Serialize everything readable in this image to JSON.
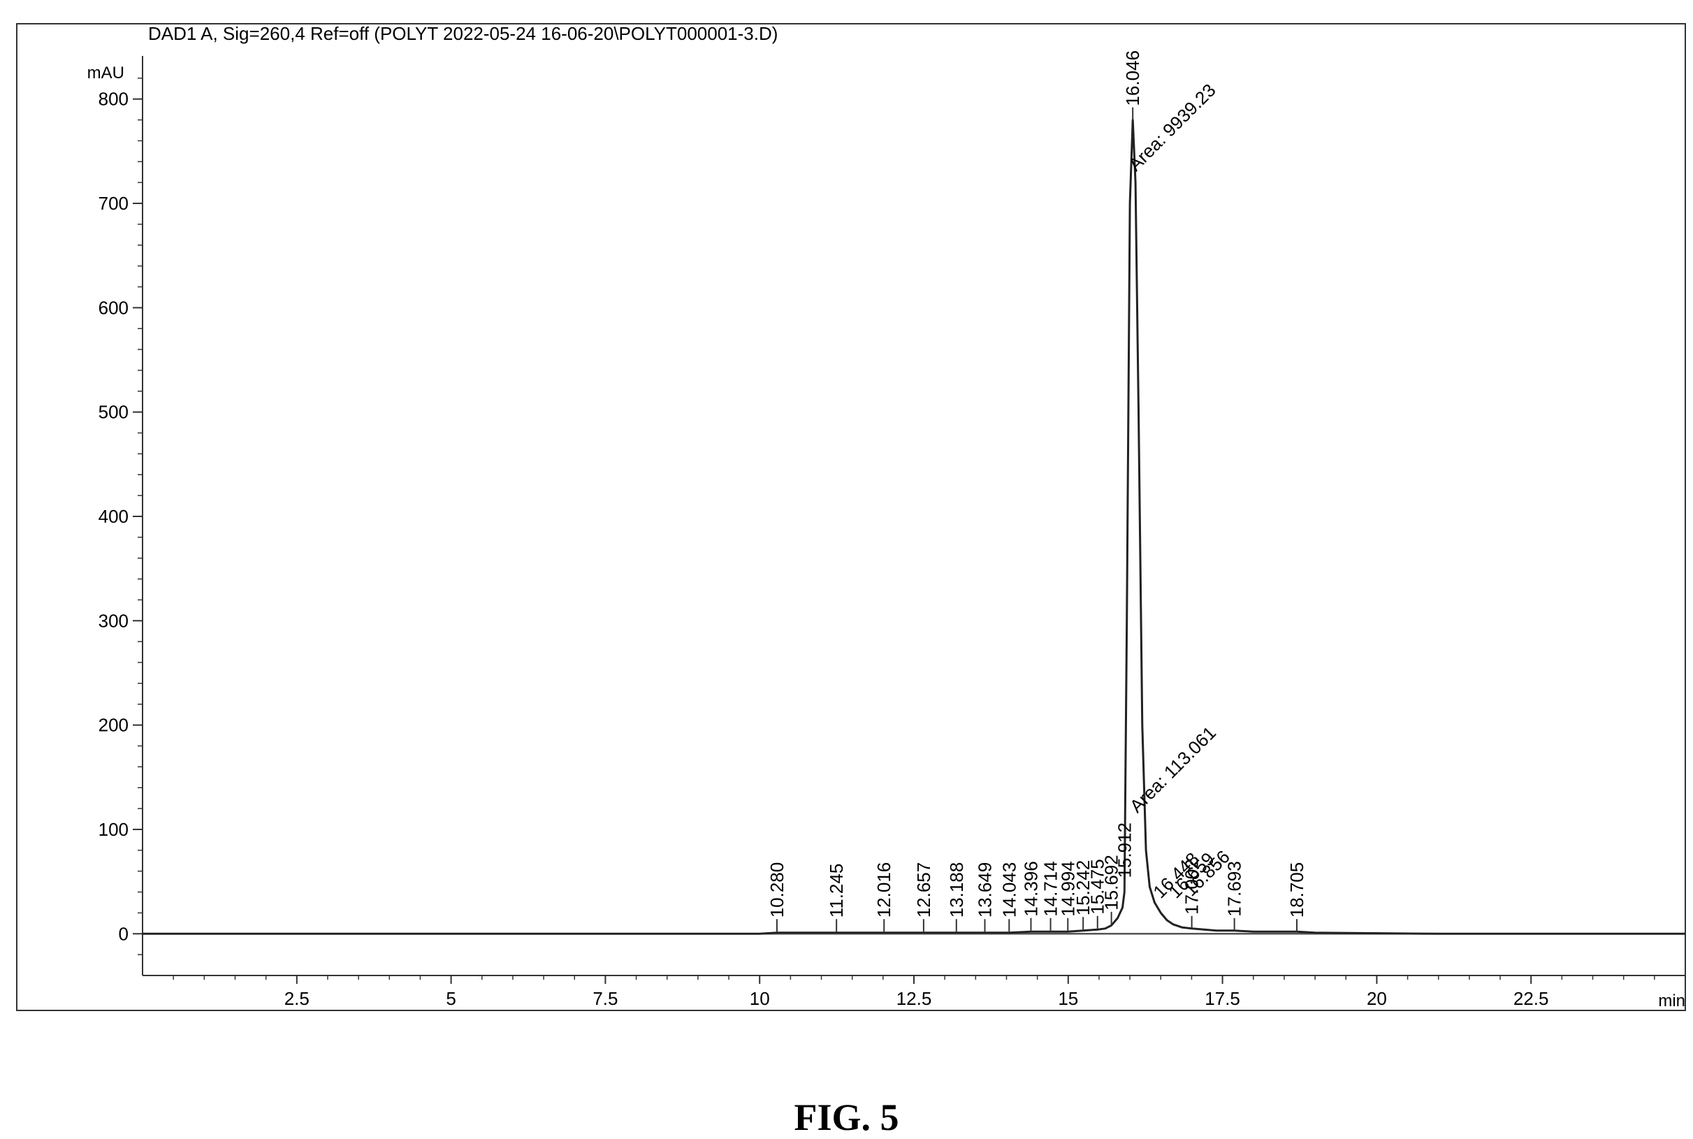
{
  "figure_caption": "FIG. 5",
  "chart_data": {
    "type": "line",
    "title": "DAD1 A, Sig=260,4 Ref=off (POLYT 2022-05-24 16-06-20\\POLYT000001-3.D)",
    "ylabel": "mAU",
    "xlabel": "min",
    "xlim": [
      0,
      25
    ],
    "ylim": [
      -40,
      840
    ],
    "x_ticks": [
      {
        "value": 2.5,
        "label": "2.5"
      },
      {
        "value": 5,
        "label": "5"
      },
      {
        "value": 7.5,
        "label": "7.5"
      },
      {
        "value": 10,
        "label": "10"
      },
      {
        "value": 12.5,
        "label": "12.5"
      },
      {
        "value": 15,
        "label": "15"
      },
      {
        "value": 17.5,
        "label": "17.5"
      },
      {
        "value": 20,
        "label": "20"
      },
      {
        "value": 22.5,
        "label": "22.5"
      }
    ],
    "y_ticks": [
      {
        "value": 0,
        "label": "0"
      },
      {
        "value": 100,
        "label": "100"
      },
      {
        "value": 200,
        "label": "200"
      },
      {
        "value": 300,
        "label": "300"
      },
      {
        "value": 400,
        "label": "400"
      },
      {
        "value": 500,
        "label": "500"
      },
      {
        "value": 600,
        "label": "600"
      },
      {
        "value": 700,
        "label": "700"
      },
      {
        "value": 800,
        "label": "800"
      }
    ],
    "series": [
      {
        "color": "#222222",
        "x": [
          0,
          10.0,
          10.28,
          11.245,
          12.016,
          12.657,
          13.188,
          13.649,
          14.043,
          14.396,
          14.714,
          14.994,
          15.242,
          15.475,
          15.6,
          15.7,
          15.8,
          15.88,
          15.912,
          15.95,
          16.0,
          16.046,
          16.09,
          16.14,
          16.2,
          16.26,
          16.32,
          16.4,
          16.5,
          16.6,
          16.7,
          16.85,
          17.002,
          17.2,
          17.4,
          17.693,
          18.0,
          18.705,
          19.0,
          21.0,
          25.0
        ],
        "y": [
          0,
          0,
          1,
          1,
          1,
          1,
          1,
          1,
          1,
          2,
          2,
          2,
          3,
          4,
          5,
          8,
          15,
          25,
          40,
          300,
          700,
          780,
          720,
          500,
          200,
          80,
          45,
          30,
          20,
          13,
          9,
          6,
          5,
          4,
          3,
          3,
          2,
          2,
          1,
          0,
          0
        ]
      }
    ],
    "peak_labels": [
      {
        "rt": 10.28,
        "y": 2,
        "text": "10.280"
      },
      {
        "rt": 11.245,
        "y": 2,
        "text": "11.245"
      },
      {
        "rt": 12.016,
        "y": 2,
        "text": "12.016"
      },
      {
        "rt": 12.657,
        "y": 2,
        "text": "12.657"
      },
      {
        "rt": 13.188,
        "y": 2,
        "text": "13.188"
      },
      {
        "rt": 13.649,
        "y": 2,
        "text": "13.649"
      },
      {
        "rt": 14.043,
        "y": 2,
        "text": "14.043"
      },
      {
        "rt": 14.396,
        "y": 3,
        "text": "14.396"
      },
      {
        "rt": 14.714,
        "y": 3,
        "text": "14.714"
      },
      {
        "rt": 14.994,
        "y": 3,
        "text": "14.994"
      },
      {
        "rt": 15.242,
        "y": 4,
        "text": "15.242"
      },
      {
        "rt": 15.475,
        "y": 5,
        "text": "15.475"
      },
      {
        "rt": 15.7,
        "y": 9,
        "text": "15.692"
      },
      {
        "rt": 15.912,
        "y": 40,
        "text": "15.912"
      },
      {
        "rt": 16.046,
        "y": 780,
        "text": "16.046"
      },
      {
        "rt": 17.002,
        "y": 5,
        "text": "17.002"
      },
      {
        "rt": 17.693,
        "y": 3,
        "text": "17.693"
      },
      {
        "rt": 18.705,
        "y": 2,
        "text": "18.705"
      }
    ],
    "annotations": [
      {
        "x": 16.1,
        "y": 730,
        "text": "Area: 9939.23",
        "angle": -45
      },
      {
        "x": 16.12,
        "y": 115,
        "text": "Area: 113.061",
        "angle": -45
      },
      {
        "x": 16.5,
        "y": 33,
        "text": "16.448",
        "angle": -45
      },
      {
        "x": 16.75,
        "y": 33,
        "text": "16.659",
        "angle": -45
      },
      {
        "x": 17.0,
        "y": 35,
        "text": "16.856",
        "angle": -45
      }
    ]
  }
}
